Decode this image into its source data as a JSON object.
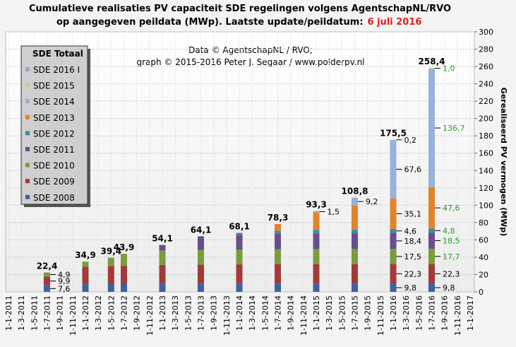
{
  "chart_data": {
    "type": "stacked_bar",
    "title_lines": [
      "Cumulatieve realisaties PV capaciteit SDE regelingen volgens AgentschapNL/RVO",
      "op aangegeven peildata (MWp). Laatste update/peildatum:"
    ],
    "update_date": "6 juli 2016",
    "credits": [
      "Data © AgentschapNL / RVO;",
      "graph © 2015-2016 Peter J. Segaar / www.polderpv.nl"
    ],
    "y_axis_label": "Gerealiseerd PV vermogen (MWp)",
    "legend_title": "SDE Totaal",
    "categories": [
      "1-1-2011",
      "1-3-2011",
      "1-5-2011",
      "1-7-2011",
      "1-9-2011",
      "1-11-2011",
      "1-1-2012",
      "1-3-2012",
      "1-5-2012",
      "1-7-2012",
      "1-9-2012",
      "1-11-2012",
      "1-1-2013",
      "1-3-2013",
      "1-5-2013",
      "1-7-2013",
      "1-9-2013",
      "1-11-2013",
      "1-1-2014",
      "1-3-2014",
      "1-5-2014",
      "1-7-2014",
      "1-9-2014",
      "1-11-2014",
      "1-1-2015",
      "1-3-2015",
      "1-5-2015",
      "1-7-2015",
      "1-9-2015",
      "1-11-2015",
      "1-1-2016",
      "1-3-2016",
      "1-5-2016",
      "1-7-2016",
      "1-9-2016",
      "1-11-2016",
      "1-1-2017"
    ],
    "series": [
      {
        "name": "SDE 2008",
        "color": "#3d62a0",
        "values": [
          null,
          null,
          null,
          7.6,
          null,
          null,
          8.8,
          null,
          8.9,
          9.0,
          null,
          null,
          9.3,
          null,
          null,
          9.5,
          null,
          null,
          9.6,
          null,
          null,
          9.6,
          null,
          null,
          9.7,
          null,
          null,
          9.7,
          null,
          null,
          9.8,
          null,
          null,
          9.8,
          null,
          null,
          null
        ],
        "value_labels": [
          null,
          null,
          null,
          "7,6",
          null,
          null,
          null,
          null,
          null,
          null,
          null,
          null,
          null,
          null,
          null,
          null,
          null,
          null,
          null,
          null,
          null,
          null,
          null,
          null,
          null,
          null,
          null,
          null,
          null,
          null,
          "9,8",
          null,
          null,
          "9,8",
          null,
          null,
          null
        ]
      },
      {
        "name": "SDE 2009",
        "color": "#a33a3a",
        "values": [
          null,
          null,
          null,
          9.9,
          null,
          null,
          20.1,
          null,
          20.8,
          21.0,
          null,
          null,
          21.8,
          null,
          null,
          22.0,
          null,
          null,
          22.1,
          null,
          null,
          22.2,
          null,
          null,
          22.2,
          null,
          null,
          22.3,
          null,
          null,
          22.3,
          null,
          null,
          22.3,
          null,
          null,
          null
        ],
        "value_labels": [
          null,
          null,
          null,
          "9,9",
          null,
          null,
          null,
          null,
          null,
          null,
          null,
          null,
          null,
          null,
          null,
          null,
          null,
          null,
          null,
          null,
          null,
          null,
          null,
          null,
          null,
          null,
          null,
          null,
          null,
          null,
          "22,3",
          null,
          null,
          "22,3",
          null,
          null,
          null
        ]
      },
      {
        "name": "SDE 2010",
        "color": "#7c9c3c",
        "values": [
          null,
          null,
          null,
          4.9,
          null,
          null,
          6.0,
          null,
          9.7,
          13.9,
          null,
          null,
          16.5,
          null,
          null,
          17.0,
          null,
          null,
          17.2,
          null,
          null,
          17.3,
          null,
          null,
          17.4,
          null,
          null,
          17.4,
          null,
          null,
          17.5,
          null,
          null,
          17.7,
          null,
          null,
          null
        ],
        "value_labels": [
          null,
          null,
          null,
          "4,9",
          null,
          null,
          null,
          null,
          null,
          null,
          null,
          null,
          null,
          null,
          null,
          null,
          null,
          null,
          null,
          null,
          null,
          null,
          null,
          null,
          null,
          null,
          null,
          null,
          null,
          null,
          "17,5",
          null,
          null,
          "17,7",
          null,
          null,
          null
        ]
      },
      {
        "name": "SDE 2011",
        "color": "#694e8c",
        "values": [
          null,
          null,
          null,
          null,
          null,
          null,
          null,
          null,
          null,
          null,
          null,
          null,
          6.5,
          null,
          null,
          15.6,
          null,
          null,
          17.0,
          null,
          null,
          17.8,
          null,
          null,
          18.1,
          null,
          null,
          18.2,
          null,
          null,
          18.4,
          null,
          null,
          18.5,
          null,
          null,
          null
        ],
        "value_labels": [
          null,
          null,
          null,
          null,
          null,
          null,
          null,
          null,
          null,
          null,
          null,
          null,
          null,
          null,
          null,
          null,
          null,
          null,
          null,
          null,
          null,
          null,
          null,
          null,
          null,
          null,
          null,
          null,
          null,
          null,
          "18,4",
          null,
          null,
          "18,5",
          null,
          null,
          null
        ]
      },
      {
        "name": "SDE 2012",
        "color": "#3a8ca4",
        "values": [
          null,
          null,
          null,
          null,
          null,
          null,
          null,
          null,
          null,
          null,
          null,
          null,
          null,
          null,
          null,
          null,
          null,
          null,
          2.2,
          null,
          null,
          3.5,
          null,
          null,
          4.0,
          null,
          null,
          4.3,
          null,
          null,
          4.6,
          null,
          null,
          4.8,
          null,
          null,
          null
        ],
        "value_labels": [
          null,
          null,
          null,
          null,
          null,
          null,
          null,
          null,
          null,
          null,
          null,
          null,
          null,
          null,
          null,
          null,
          null,
          null,
          null,
          null,
          null,
          null,
          null,
          null,
          null,
          null,
          null,
          null,
          null,
          null,
          "4,6",
          null,
          null,
          "4,8",
          null,
          null,
          null
        ]
      },
      {
        "name": "SDE 2013",
        "color": "#e2842c",
        "values": [
          null,
          null,
          null,
          null,
          null,
          null,
          null,
          null,
          null,
          null,
          null,
          null,
          null,
          null,
          null,
          null,
          null,
          null,
          null,
          null,
          null,
          7.9,
          null,
          null,
          20.4,
          null,
          null,
          27.7,
          null,
          null,
          35.1,
          null,
          null,
          47.6,
          null,
          null,
          null
        ],
        "value_labels": [
          null,
          null,
          null,
          null,
          null,
          null,
          null,
          null,
          null,
          null,
          null,
          null,
          null,
          null,
          null,
          null,
          null,
          null,
          null,
          null,
          null,
          null,
          null,
          null,
          null,
          null,
          null,
          null,
          null,
          null,
          "35,1",
          null,
          null,
          "47,6",
          null,
          null,
          null
        ]
      },
      {
        "name": "SDE 2014",
        "color": "#98b2da",
        "values": [
          null,
          null,
          null,
          null,
          null,
          null,
          null,
          null,
          null,
          null,
          null,
          null,
          null,
          null,
          null,
          null,
          null,
          null,
          null,
          null,
          null,
          null,
          null,
          null,
          1.5,
          null,
          null,
          9.2,
          null,
          null,
          67.6,
          null,
          null,
          136.7,
          null,
          null,
          null
        ],
        "value_labels": [
          null,
          null,
          null,
          null,
          null,
          null,
          null,
          null,
          null,
          null,
          null,
          null,
          null,
          null,
          null,
          null,
          null,
          null,
          null,
          null,
          null,
          null,
          null,
          null,
          "1,5",
          null,
          null,
          "9,2",
          null,
          null,
          "67,6",
          null,
          null,
          "136,7",
          null,
          null,
          null
        ]
      },
      {
        "name": "SDE 2015",
        "color": "#bcd48c",
        "values": [
          null,
          null,
          null,
          null,
          null,
          null,
          null,
          null,
          null,
          null,
          null,
          null,
          null,
          null,
          null,
          null,
          null,
          null,
          null,
          null,
          null,
          null,
          null,
          null,
          null,
          null,
          null,
          null,
          null,
          null,
          0.2,
          null,
          null,
          1.0,
          null,
          null,
          null
        ],
        "value_labels": [
          null,
          null,
          null,
          null,
          null,
          null,
          null,
          null,
          null,
          null,
          null,
          null,
          null,
          null,
          null,
          null,
          null,
          null,
          null,
          null,
          null,
          null,
          null,
          null,
          null,
          null,
          null,
          null,
          null,
          null,
          "0,2",
          null,
          null,
          "1,0",
          null,
          null,
          null
        ]
      },
      {
        "name": "SDE 2016 I",
        "color": "#aa9ecb",
        "values": [
          null,
          null,
          null,
          null,
          null,
          null,
          null,
          null,
          null,
          null,
          null,
          null,
          null,
          null,
          null,
          null,
          null,
          null,
          null,
          null,
          null,
          null,
          null,
          null,
          null,
          null,
          null,
          null,
          null,
          null,
          null,
          null,
          null,
          null,
          null,
          null,
          null
        ],
        "value_labels": [
          null,
          null,
          null,
          null,
          null,
          null,
          null,
          null,
          null,
          null,
          null,
          null,
          null,
          null,
          null,
          null,
          null,
          null,
          null,
          null,
          null,
          null,
          null,
          null,
          null,
          null,
          null,
          null,
          null,
          null,
          null,
          null,
          null,
          null,
          null,
          null,
          null
        ]
      }
    ],
    "totals": [
      null,
      null,
      null,
      22.4,
      null,
      null,
      34.9,
      null,
      39.4,
      43.9,
      null,
      null,
      54.1,
      null,
      null,
      64.1,
      null,
      null,
      68.1,
      null,
      null,
      78.3,
      null,
      null,
      93.3,
      null,
      null,
      108.8,
      null,
      null,
      175.5,
      null,
      null,
      258.4,
      null,
      null,
      null
    ],
    "total_labels": [
      null,
      null,
      null,
      "22,4",
      null,
      null,
      "34,9",
      null,
      "39,4",
      "43,9",
      null,
      null,
      "54,1",
      null,
      null,
      "64,1",
      null,
      null,
      "68,1",
      null,
      null,
      "78,3",
      null,
      null,
      "93,3",
      null,
      null,
      "108,8",
      null,
      null,
      "175,5",
      null,
      null,
      "258,4",
      null,
      null,
      null
    ],
    "highlight_label_color": "#22a02a",
    "ylim": [
      0,
      300
    ],
    "yticks": [
      0,
      20,
      40,
      60,
      80,
      100,
      120,
      140,
      160,
      180,
      200,
      220,
      240,
      260,
      280,
      300
    ],
    "grid": true,
    "legend_position": "upper left"
  }
}
